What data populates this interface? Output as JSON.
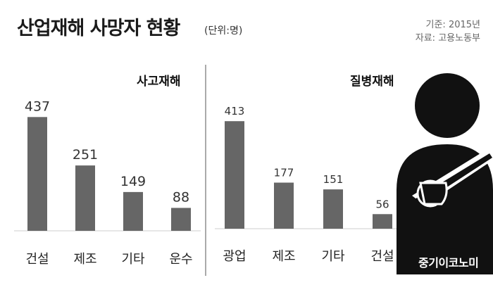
{
  "header": {
    "title": "산업재해 사망자 현황",
    "unit": "(단위:명)",
    "year": "기준: 2015년",
    "source": "자료: 고용노동부"
  },
  "brand": "중기이코노미",
  "chart_data": [
    {
      "type": "bar",
      "title": "사고재해",
      "categories": [
        "건설",
        "제조",
        "기타",
        "운수"
      ],
      "values": [
        437,
        251,
        149,
        88
      ],
      "ylim": [
        0,
        500
      ],
      "grid": false,
      "color": "#666666"
    },
    {
      "type": "bar",
      "title": "질병재해",
      "categories": [
        "광업",
        "제조",
        "기타",
        "건설"
      ],
      "values": [
        413,
        177,
        151,
        56
      ],
      "ylim": [
        0,
        500
      ],
      "grid": false,
      "color": "#666666"
    }
  ]
}
